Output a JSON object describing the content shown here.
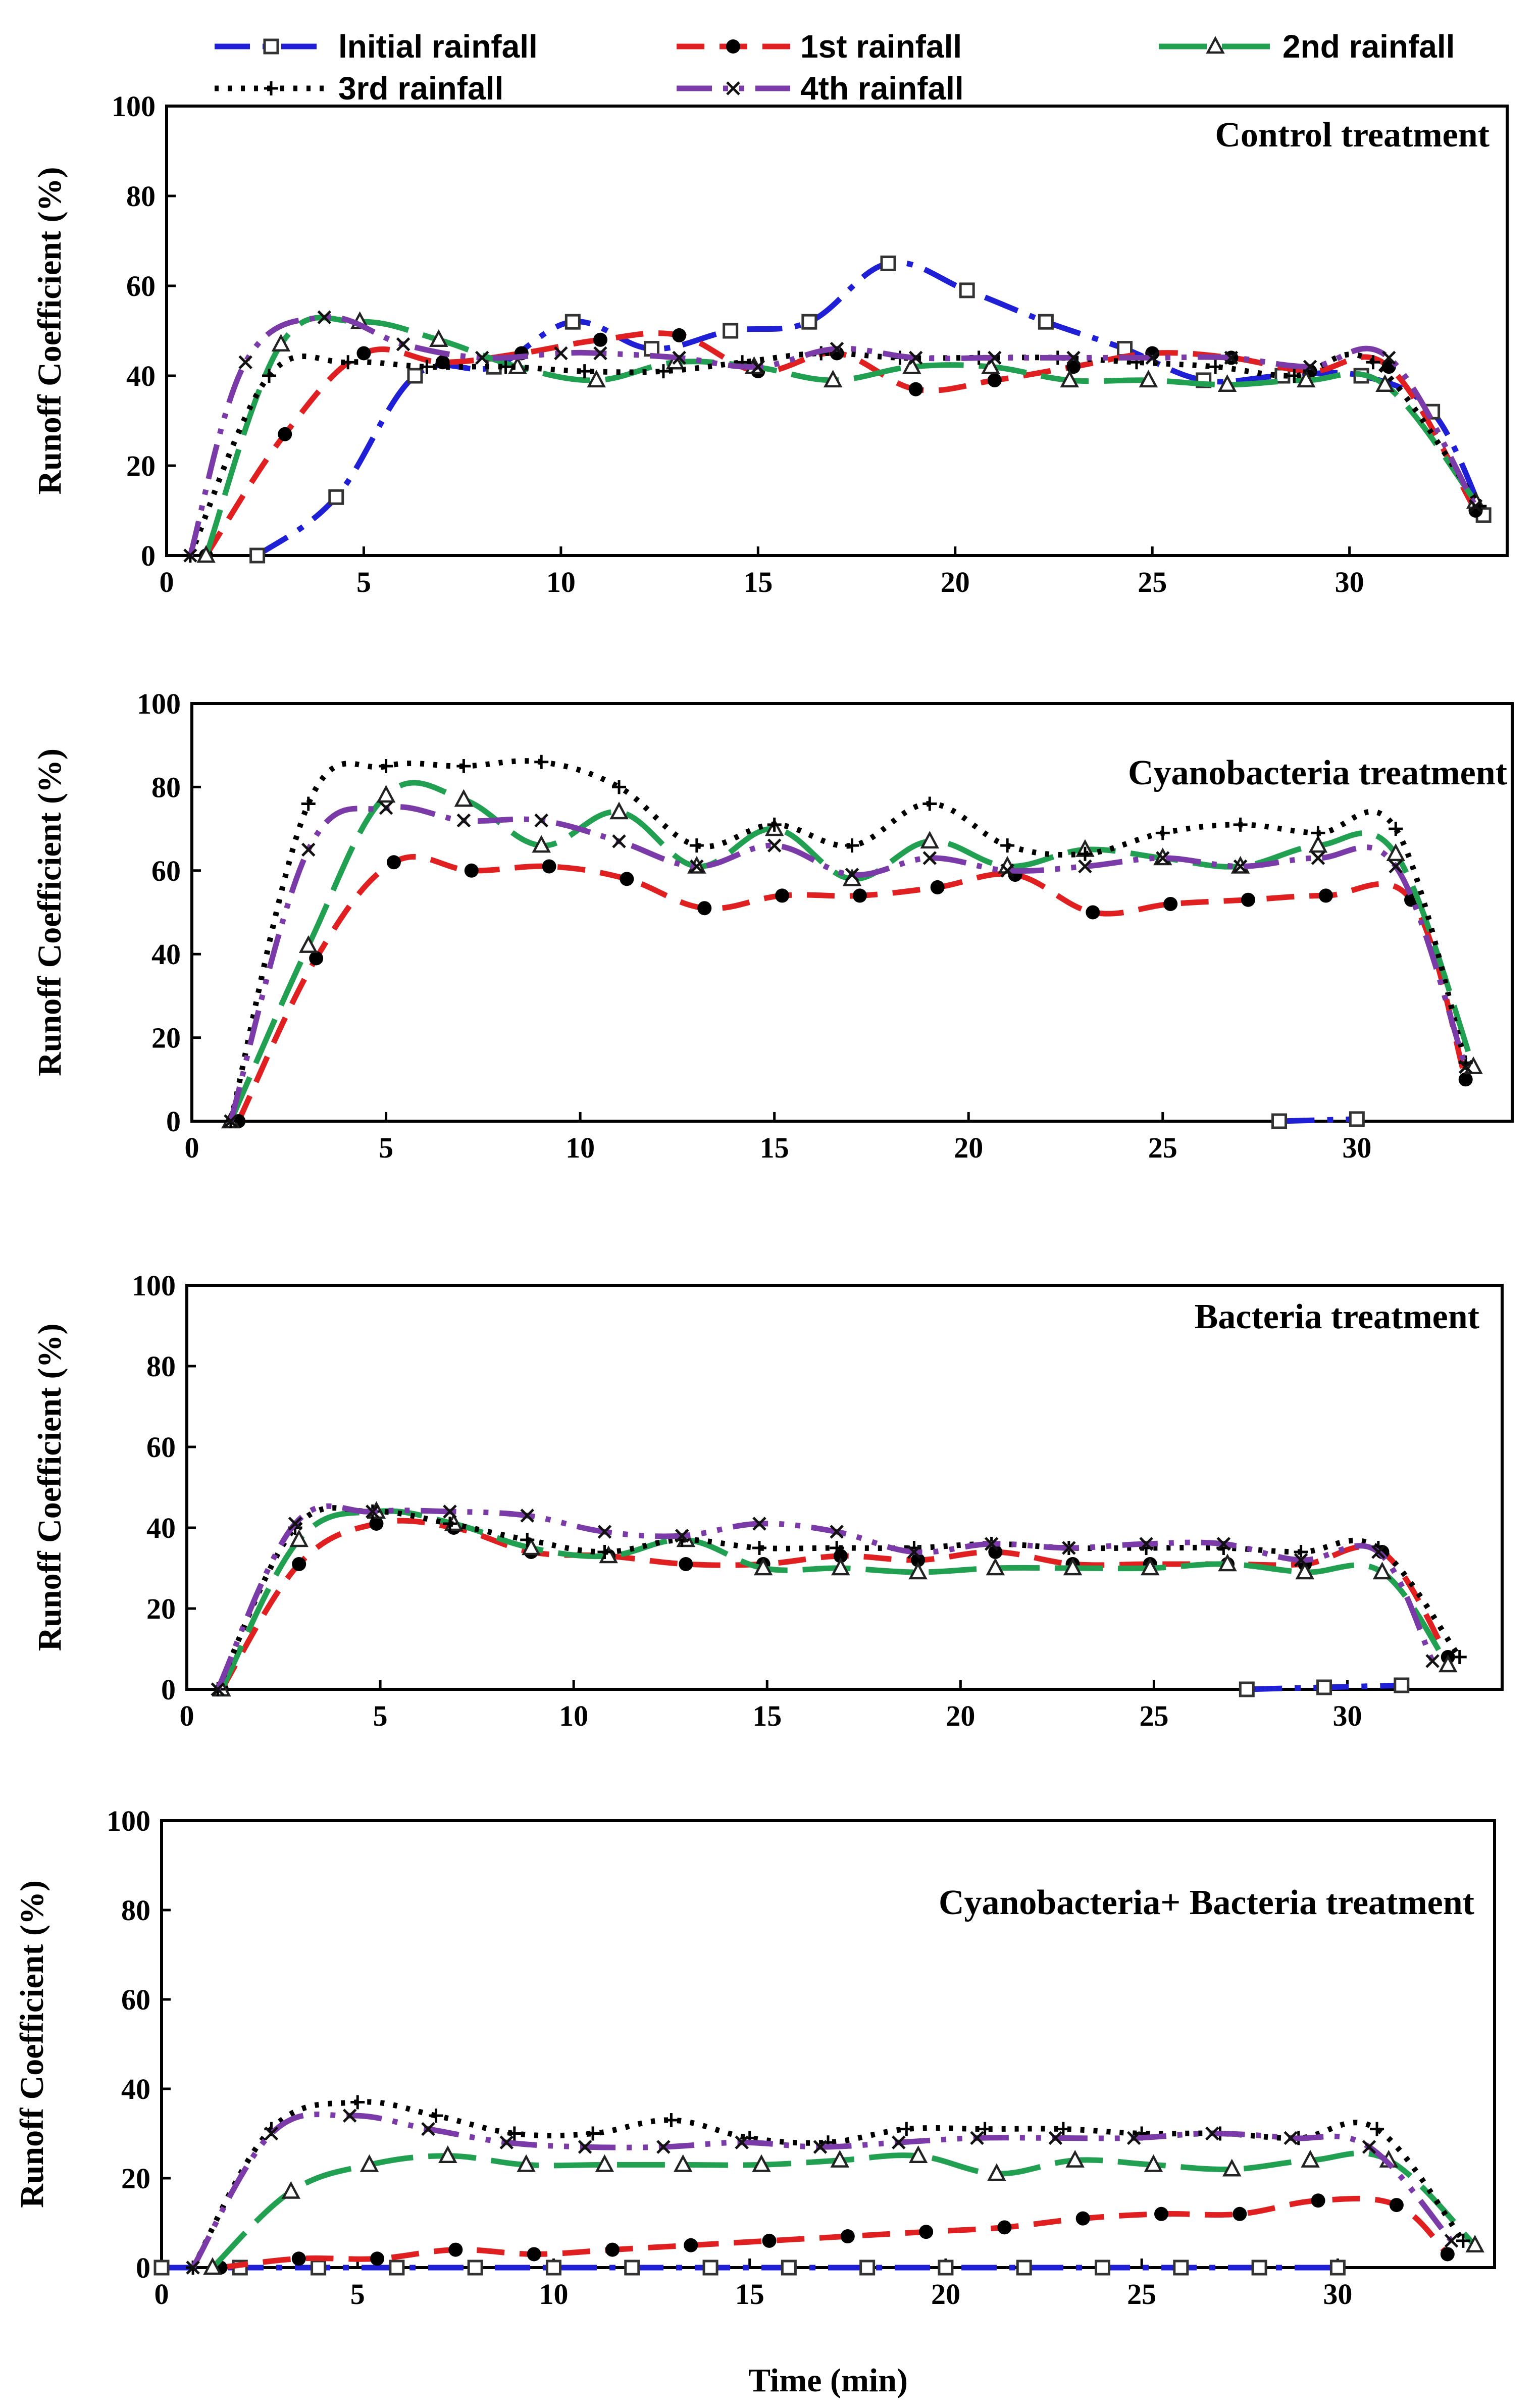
{
  "chart_data": {
    "type": "line",
    "legend": {
      "placement": "top",
      "entries": [
        {
          "key": "initial",
          "name": "lnitial rainfall"
        },
        {
          "key": "first",
          "name": "1st rainfall"
        },
        {
          "key": "second",
          "name": "2nd rainfall"
        },
        {
          "key": "third",
          "name": "3rd rainfall"
        },
        {
          "key": "fourth",
          "name": "4th rainfall"
        }
      ]
    },
    "series_styles": {
      "initial": {
        "color": "#1f1fd6",
        "dash": "dashdot",
        "marker": "square"
      },
      "first": {
        "color": "#e02020",
        "dash": "dash",
        "marker": "circle"
      },
      "second": {
        "color": "#20a050",
        "dash": "longdash",
        "marker": "triangle"
      },
      "third": {
        "color": "#000000",
        "dash": "dot",
        "marker": "plus"
      },
      "fourth": {
        "color": "#7a3aa8",
        "dash": "dashdotdot",
        "marker": "x"
      }
    },
    "xlabel": "Time (min)",
    "panels": [
      {
        "title": "Control treatment",
        "ylabel": "Runoff Coefficient (%)",
        "xlim": [
          0,
          34
        ],
        "ylim": [
          0,
          100
        ],
        "xticks": [
          0,
          5,
          10,
          15,
          20,
          25,
          30
        ],
        "yticks": [
          0,
          20,
          40,
          60,
          80,
          100
        ],
        "series": [
          {
            "key": "initial",
            "x": [
              2.3,
              4.3,
              6.3,
              8.3,
              10.3,
              12.3,
              14.3,
              16.3,
              18.3,
              20.3,
              22.3,
              24.3,
              26.3,
              28.3,
              30.3,
              32.1,
              33.4
            ],
            "y": [
              0,
              13,
              40,
              42,
              52,
              46,
              50,
              52,
              65,
              59,
              52,
              46,
              39,
              40,
              40,
              32,
              9
            ]
          },
          {
            "key": "first",
            "x": [
              1.0,
              3.0,
              5.0,
              7.0,
              9.0,
              11.0,
              13.0,
              15.0,
              17.0,
              19.0,
              21.0,
              23.0,
              25.0,
              27.0,
              29.0,
              31.0,
              33.2
            ],
            "y": [
              0,
              27,
              45,
              43,
              45,
              48,
              49,
              41,
              45,
              37,
              39,
              42,
              45,
              44,
              41,
              42,
              10
            ]
          },
          {
            "key": "second",
            "x": [
              1.0,
              2.9,
              4.9,
              6.9,
              8.9,
              10.9,
              12.9,
              14.9,
              16.9,
              18.9,
              20.9,
              22.9,
              24.9,
              26.9,
              28.9,
              30.9,
              33.2
            ],
            "y": [
              0,
              47,
              52,
              48,
              42,
              39,
              43,
              42,
              39,
              42,
              42,
              39,
              39,
              38,
              39,
              38,
              12
            ]
          },
          {
            "key": "third",
            "x": [
              0.6,
              2.6,
              4.6,
              6.6,
              8.6,
              10.6,
              12.6,
              14.6,
              16.6,
              18.6,
              20.6,
              22.6,
              24.6,
              26.6,
              28.6,
              30.6,
              33.3
            ],
            "y": [
              0,
              40,
              43,
              42,
              42,
              41,
              41,
              43,
              45,
              44,
              44,
              44,
              43,
              42,
              40,
              43,
              11
            ]
          },
          {
            "key": "fourth",
            "x": [
              0.6,
              2.0,
              4.0,
              6.0,
              8.0,
              10.0,
              11.0,
              13.0,
              15.0,
              17.0,
              19.0,
              21.0,
              23.0,
              25.0,
              27.0,
              29.0,
              31.0,
              33.2
            ],
            "y": [
              0,
              43,
              53,
              47,
              44,
              45,
              45,
              44,
              42,
              46,
              44,
              44,
              44,
              44,
              44,
              42,
              44,
              11
            ]
          }
        ]
      },
      {
        "title": "Cyanobacteria treatment",
        "ylabel": "Runoff Coefficient (%)",
        "xlim": [
          0,
          34
        ],
        "ylim": [
          0,
          100
        ],
        "xticks": [
          0,
          5,
          10,
          15,
          20,
          25,
          30
        ],
        "yticks": [
          0,
          20,
          40,
          60,
          80,
          100
        ],
        "series": [
          {
            "key": "initial",
            "x": [
              28.0,
              30.0
            ],
            "y": [
              0,
              0.5
            ]
          },
          {
            "key": "first",
            "x": [
              1.2,
              3.2,
              5.2,
              7.2,
              9.2,
              11.2,
              13.2,
              15.2,
              17.2,
              19.2,
              21.2,
              23.2,
              25.2,
              27.2,
              29.2,
              31.4,
              32.8
            ],
            "y": [
              0,
              39,
              62,
              60,
              61,
              58,
              51,
              54,
              54,
              56,
              59,
              50,
              52,
              53,
              54,
              53,
              10
            ]
          },
          {
            "key": "second",
            "x": [
              1.0,
              3.0,
              5.0,
              7.0,
              9.0,
              11.0,
              13.0,
              15.0,
              17.0,
              19.0,
              21.0,
              23.0,
              25.0,
              27.0,
              29.0,
              31.0,
              33.0
            ],
            "y": [
              0,
              42,
              78,
              77,
              66,
              74,
              61,
              70,
              58,
              67,
              61,
              65,
              63,
              61,
              66,
              64,
              13
            ]
          },
          {
            "key": "third",
            "x": [
              1.0,
              3.0,
              5.0,
              7.0,
              9.0,
              11.0,
              13.0,
              15.0,
              17.0,
              19.0,
              21.0,
              23.0,
              25.0,
              27.0,
              29.0,
              31.0,
              32.8
            ],
            "y": [
              0,
              76,
              85,
              85,
              86,
              80,
              66,
              71,
              66,
              76,
              66,
              64,
              69,
              71,
              69,
              70,
              14
            ]
          },
          {
            "key": "fourth",
            "x": [
              1.0,
              3.0,
              5.0,
              7.0,
              9.0,
              11.0,
              13.0,
              15.0,
              17.0,
              19.0,
              21.0,
              23.0,
              25.0,
              27.0,
              29.0,
              31.0,
              32.8
            ],
            "y": [
              0,
              65,
              75,
              72,
              72,
              67,
              61,
              66,
              59,
              63,
              60,
              61,
              63,
              61,
              63,
              61,
              13
            ]
          }
        ]
      },
      {
        "title": "Bacteria treatment",
        "ylabel": "Runoff Coefficient (%)",
        "xlim": [
          0,
          34
        ],
        "ylim": [
          0,
          100
        ],
        "xticks": [
          0,
          5,
          10,
          15,
          20,
          25,
          30
        ],
        "yticks": [
          0,
          20,
          40,
          60,
          80,
          100
        ],
        "series": [
          {
            "key": "initial",
            "x": [
              27.4,
              29.4,
              31.4
            ],
            "y": [
              0,
              0.5,
              1
            ]
          },
          {
            "key": "first",
            "x": [
              0.9,
              2.9,
              4.9,
              6.9,
              8.9,
              10.9,
              12.9,
              14.9,
              16.9,
              18.9,
              20.9,
              22.9,
              24.9,
              26.9,
              28.9,
              30.9,
              32.6
            ],
            "y": [
              0,
              31,
              41,
              40,
              34,
              33,
              31,
              31,
              33,
              32,
              34,
              31,
              31,
              31,
              31,
              34,
              8
            ]
          },
          {
            "key": "second",
            "x": [
              0.9,
              2.9,
              4.9,
              6.9,
              8.9,
              10.9,
              12.9,
              14.9,
              16.9,
              18.9,
              20.9,
              22.9,
              24.9,
              26.9,
              28.9,
              30.9,
              32.6
            ],
            "y": [
              0,
              37,
              44,
              41,
              35,
              33,
              37,
              30,
              30,
              29,
              30,
              30,
              30,
              31,
              29,
              29,
              6
            ]
          },
          {
            "key": "third",
            "x": [
              0.8,
              2.8,
              4.8,
              6.8,
              8.8,
              10.8,
              12.8,
              14.8,
              16.8,
              18.8,
              20.8,
              22.8,
              24.8,
              26.8,
              28.8,
              30.8,
              32.9
            ],
            "y": [
              0,
              40,
              44,
              41,
              37,
              34,
              37,
              35,
              35,
              35,
              36,
              35,
              35,
              35,
              34,
              35,
              8
            ]
          },
          {
            "key": "fourth",
            "x": [
              0.8,
              2.8,
              4.8,
              6.8,
              8.8,
              10.8,
              12.8,
              14.8,
              16.8,
              18.8,
              20.8,
              22.8,
              24.8,
              26.8,
              28.8,
              30.8,
              32.2
            ],
            "y": [
              0,
              41,
              44,
              44,
              43,
              39,
              38,
              41,
              39,
              34,
              36,
              35,
              36,
              36,
              32,
              34,
              7
            ]
          }
        ]
      },
      {
        "title": "Cyanobacteria+ Bacteria treatment",
        "ylabel": "Runoff Coefficient (%)",
        "xlim": [
          0,
          34
        ],
        "ylim": [
          0,
          100
        ],
        "xticks": [
          0,
          5,
          10,
          15,
          20,
          25,
          30
        ],
        "yticks": [
          0,
          20,
          40,
          60,
          80,
          100
        ],
        "series": [
          {
            "key": "initial",
            "x": [
              0,
              2,
              4,
              6,
              8,
              10,
              12,
              14,
              16,
              18,
              20,
              22,
              24,
              26,
              28,
              30
            ],
            "y": [
              0,
              0,
              0,
              0,
              0,
              0,
              0,
              0,
              0,
              0,
              0,
              0,
              0,
              0,
              0,
              0
            ]
          },
          {
            "key": "first",
            "x": [
              1.5,
              3.5,
              5.5,
              7.5,
              9.5,
              11.5,
              13.5,
              15.5,
              17.5,
              19.5,
              21.5,
              23.5,
              25.5,
              27.5,
              29.5,
              31.5,
              32.8
            ],
            "y": [
              0,
              2,
              2,
              4,
              3,
              4,
              5,
              6,
              7,
              8,
              9,
              11,
              12,
              12,
              15,
              14,
              3
            ]
          },
          {
            "key": "second",
            "x": [
              1.3,
              3.3,
              5.3,
              7.3,
              9.3,
              11.3,
              13.3,
              15.3,
              17.3,
              19.3,
              21.3,
              23.3,
              25.3,
              27.3,
              29.3,
              31.3,
              33.5
            ],
            "y": [
              0,
              17,
              23,
              25,
              23,
              23,
              23,
              23,
              24,
              25,
              21,
              24,
              23,
              22,
              24,
              24,
              5
            ]
          },
          {
            "key": "third",
            "x": [
              0.8,
              2.8,
              5.0,
              7.0,
              9.0,
              11.0,
              13.0,
              15.0,
              17.0,
              19.0,
              21.0,
              23.0,
              25.0,
              27.0,
              29.0,
              31.0,
              33.2
            ],
            "y": [
              0,
              31,
              37,
              34,
              30,
              30,
              33,
              29,
              28,
              31,
              31,
              31,
              30,
              30,
              29,
              31,
              6
            ]
          },
          {
            "key": "fourth",
            "x": [
              0.8,
              2.8,
              4.8,
              6.8,
              8.8,
              10.8,
              12.8,
              14.8,
              16.8,
              18.8,
              20.8,
              22.8,
              24.8,
              26.8,
              28.8,
              30.8,
              32.9
            ],
            "y": [
              0,
              30,
              34,
              31,
              28,
              27,
              27,
              28,
              27,
              28,
              29,
              29,
              29,
              30,
              29,
              27,
              6
            ]
          }
        ]
      }
    ]
  }
}
